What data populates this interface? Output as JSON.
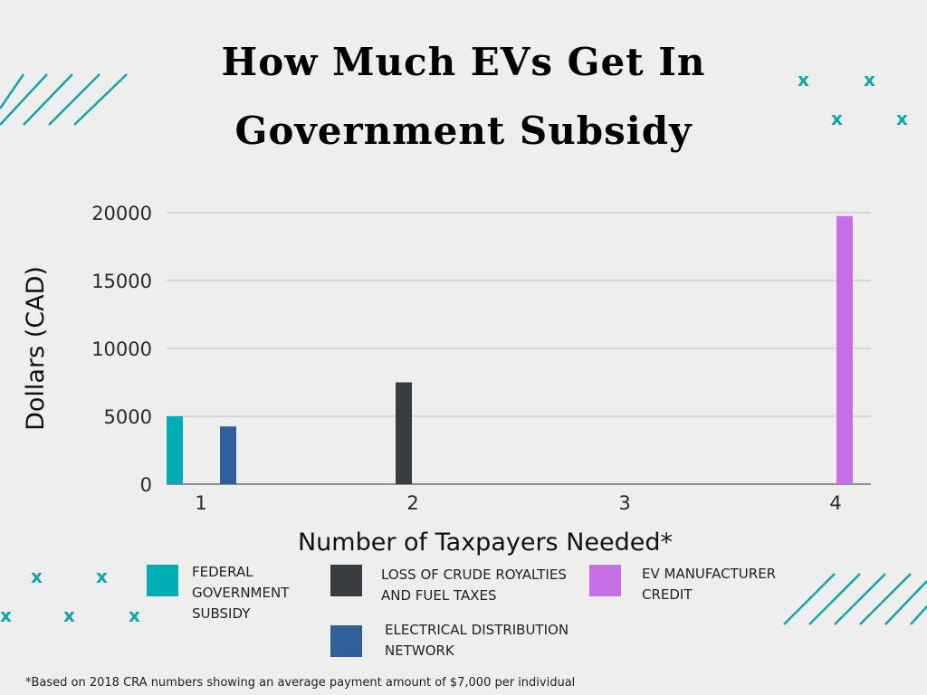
{
  "title_line1": "How Much EVs Get In",
  "title_line2": "Government Subsidy",
  "chart_data": {
    "type": "bar",
    "title": "How Much EVs Get In Government Subsidy",
    "xlabel": "Number of Taxpayers Needed*",
    "ylabel": "Dollars (CAD)",
    "ylim": [
      0,
      20000
    ],
    "yticks": [
      "0",
      "5000",
      "10000",
      "15000",
      "20000"
    ],
    "xticks": [
      "1",
      "2",
      "3",
      "4"
    ],
    "grid": true,
    "series": [
      {
        "name": "FEDERAL GOVERNMENT SUBSIDY",
        "color": "#00adb5",
        "x": 1,
        "value": 5000
      },
      {
        "name": "ELECTRICAL DISTRIBUTION NETWORK",
        "color": "#2e5e9c",
        "x": 1,
        "value": 4250
      },
      {
        "name": "LOSS OF CRUDE ROYALTIES AND FUEL TAXES",
        "color": "#383b40",
        "x": 2,
        "value": 7500
      },
      {
        "name": "EV MANUFACTURER CREDIT",
        "color": "#c86ee6",
        "x": 4,
        "value": 19750
      }
    ]
  },
  "legend": [
    {
      "label": "FEDERAL\nGOVERNMENT\nSUBSIDY",
      "color": "#00adb5"
    },
    {
      "label": "LOSS OF CRUDE ROYALTIES\nAND FUEL TAXES",
      "color": "#383b40"
    },
    {
      "label": "EV MANUFACTURER\nCREDIT",
      "color": "#c86ee6"
    },
    {
      "label": "ELECTRICAL DISTRIBUTION\nNETWORK",
      "color": "#2e5e9c"
    }
  ],
  "footnote": "*Based on 2018 CRA numbers showing an average payment amount of $7,000 per individual",
  "decor": {
    "x_mark": "x",
    "accent": "#13a5a8"
  }
}
